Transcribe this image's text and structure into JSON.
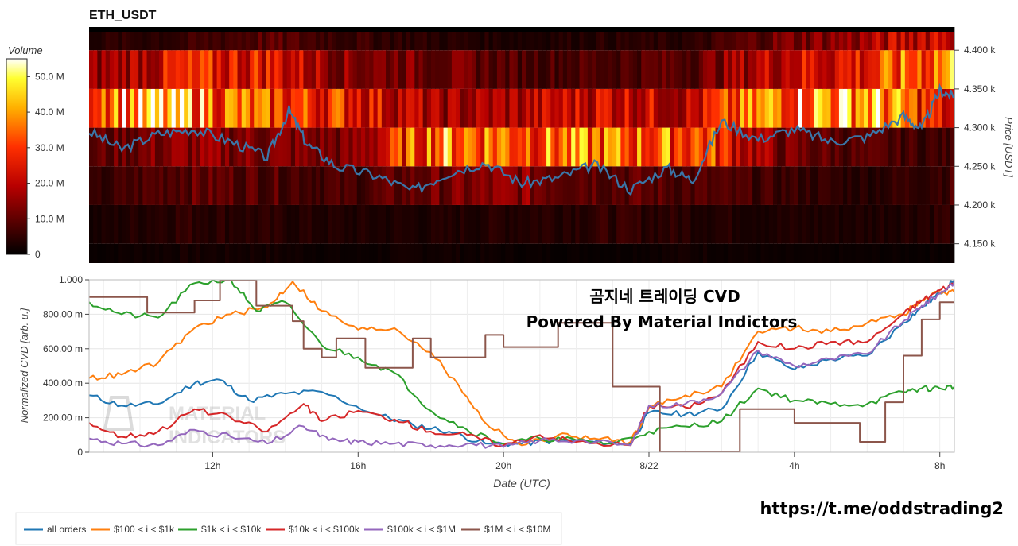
{
  "colors": {
    "all": "#1f77b4",
    "s100": "#ff7f0e",
    "s1k": "#2ca02c",
    "s10k": "#d62728",
    "s100k": "#9467bd",
    "s1m": "#8c564b",
    "price": "#3a76a8"
  },
  "icons": [
    "material-indicators-logo"
  ],
  "chart_data": [
    {
      "type": "heatmap",
      "title": "ETH_USDT",
      "colorbar": {
        "label": "Volume",
        "ticks": [
          "0",
          "10.0 M",
          "20.0 M",
          "30.0 M",
          "40.0 M",
          "50.0 M"
        ],
        "range": [
          0,
          55
        ],
        "colormap": "black-red-yellow-white"
      },
      "y_right": {
        "label": "Price [USDT]",
        "ticks": [
          "4.150 k",
          "4.200 k",
          "4.250 k",
          "4.300 k",
          "4.350 k",
          "4.400 k"
        ],
        "range": [
          4125,
          4430
        ]
      },
      "price_bands": [
        4125,
        4175,
        4225,
        4275,
        4325,
        4375,
        4425
      ],
      "band_levels": [
        [
          1,
          2,
          2,
          1,
          2,
          1,
          1,
          2,
          1,
          1,
          1
        ],
        [
          2,
          5,
          4,
          3,
          3,
          4,
          5,
          4,
          3,
          3,
          5
        ],
        [
          4,
          10,
          9,
          7,
          11,
          14,
          10,
          8,
          6,
          4,
          7
        ],
        [
          9,
          14,
          13,
          12,
          38,
          36,
          34,
          34,
          12,
          8,
          6
        ],
        [
          40,
          42,
          30,
          28,
          16,
          18,
          24,
          20,
          40,
          44,
          20
        ],
        [
          14,
          24,
          26,
          14,
          12,
          8,
          8,
          10,
          22,
          26,
          40
        ],
        [
          4,
          5,
          9,
          6,
          4,
          3,
          4,
          4,
          12,
          16,
          26
        ]
      ],
      "price_line": {
        "name": "Price",
        "x_hours": [
          8.6,
          9.5,
          10.5,
          11.5,
          12.5,
          13.5,
          14.1,
          14.6,
          15.4,
          16.5,
          17.5,
          18.5,
          19.5,
          20.5,
          21.5,
          22.5,
          23.5,
          24.5,
          25.2,
          26,
          27,
          28,
          29,
          30,
          31,
          31.5,
          32,
          32.4
        ],
        "values": [
          4295,
          4272,
          4292,
          4298,
          4282,
          4262,
          4322,
          4278,
          4250,
          4238,
          4218,
          4242,
          4255,
          4228,
          4235,
          4252,
          4220,
          4248,
          4232,
          4308,
          4285,
          4298,
          4282,
          4288,
          4315,
          4298,
          4348,
          4340
        ]
      }
    },
    {
      "type": "line",
      "xlabel": "Date (UTC)",
      "ylabel": "Normalized CVD [arb. u.]",
      "x_ticks": [
        "12h",
        "16h",
        "20h",
        "8/22",
        "4h",
        "8h"
      ],
      "x_tick_hours": [
        12,
        16,
        20,
        24,
        28,
        32
      ],
      "x_range_hours": [
        8.6,
        32.4
      ],
      "y_ticks": [
        "0",
        "200.00 m",
        "400.00 m",
        "600.00 m",
        "800.00 m",
        "1.000"
      ],
      "ylim": [
        0,
        1
      ],
      "annotations": [
        "곰지네 트레이딩 CVD",
        "Powered By Material Indictors"
      ],
      "watermark": [
        "MATERIAL",
        "INDICATORS"
      ],
      "legend": "bottom",
      "series": [
        {
          "name": "all orders",
          "key": "all",
          "x": [
            8.6,
            9.5,
            10.5,
            11.5,
            12.2,
            13,
            14,
            15,
            16.5,
            17.5,
            18.5,
            19.5,
            20.5,
            21.5,
            22.5,
            23.5,
            24,
            25,
            26,
            27,
            28,
            29,
            30,
            31,
            31.5,
            32,
            32.4
          ],
          "y": [
            0.33,
            0.27,
            0.28,
            0.4,
            0.42,
            0.3,
            0.34,
            0.35,
            0.22,
            0.16,
            0.12,
            0.05,
            0.05,
            0.07,
            0.06,
            0.05,
            0.23,
            0.22,
            0.25,
            0.58,
            0.48,
            0.54,
            0.56,
            0.75,
            0.84,
            0.92,
            1.0
          ]
        },
        {
          "name": "$100 < i < $1k",
          "key": "s100",
          "x": [
            8.6,
            9.5,
            10.5,
            11.5,
            12.5,
            13.5,
            14.2,
            15,
            16,
            17,
            18,
            19,
            19.5,
            20.5,
            21.5,
            22.5,
            23.5,
            24,
            25,
            26,
            27,
            28,
            29,
            30,
            31,
            31.5,
            32,
            32.4
          ],
          "y": [
            0.43,
            0.45,
            0.52,
            0.72,
            0.8,
            0.84,
            0.99,
            0.82,
            0.71,
            0.72,
            0.58,
            0.32,
            0.17,
            0.04,
            0.1,
            0.08,
            0.06,
            0.26,
            0.33,
            0.38,
            0.7,
            0.72,
            0.7,
            0.75,
            0.8,
            0.88,
            0.93,
            0.93
          ]
        },
        {
          "name": "$1k < i < $10k",
          "key": "s1k",
          "x": [
            8.6,
            9.5,
            10.5,
            11.5,
            12.5,
            13.2,
            14,
            15,
            16,
            17,
            18,
            19,
            20,
            21,
            22,
            23,
            24,
            25,
            26,
            27,
            28,
            29,
            30,
            31,
            31.5,
            32,
            32.4
          ],
          "y": [
            0.87,
            0.8,
            0.78,
            0.98,
            1.0,
            0.82,
            0.87,
            0.62,
            0.55,
            0.46,
            0.24,
            0.13,
            0.05,
            0.08,
            0.07,
            0.05,
            0.12,
            0.15,
            0.18,
            0.37,
            0.3,
            0.28,
            0.28,
            0.35,
            0.37,
            0.37,
            0.38
          ]
        },
        {
          "name": "$10k < i < $100k",
          "key": "s10k",
          "x": [
            8.6,
            9.5,
            10.5,
            11.5,
            12.5,
            13.5,
            14.5,
            15,
            16,
            17,
            18,
            19,
            20,
            21,
            22,
            23.5,
            24,
            25,
            26,
            27,
            28,
            29,
            30,
            31,
            31.5,
            32,
            32.4
          ],
          "y": [
            0.17,
            0.09,
            0.12,
            0.25,
            0.2,
            0.12,
            0.28,
            0.18,
            0.24,
            0.19,
            0.12,
            0.1,
            0.04,
            0.1,
            0.06,
            0.04,
            0.27,
            0.26,
            0.34,
            0.64,
            0.6,
            0.64,
            0.64,
            0.8,
            0.88,
            0.94,
            0.98
          ]
        },
        {
          "name": "$100k < i < $1M",
          "key": "s100k",
          "x": [
            8.6,
            9.5,
            10.5,
            11.5,
            12.5,
            13.5,
            14.5,
            15.2,
            16,
            17,
            18,
            19,
            20,
            21,
            22,
            23.5,
            24,
            25,
            26,
            27,
            28,
            29,
            30,
            31,
            31.5,
            32,
            32.4
          ],
          "y": [
            0.08,
            0.05,
            0.04,
            0.13,
            0.09,
            0.05,
            0.15,
            0.07,
            0.06,
            0.05,
            0.04,
            0.05,
            0.03,
            0.07,
            0.07,
            0.04,
            0.27,
            0.28,
            0.34,
            0.59,
            0.5,
            0.54,
            0.57,
            0.76,
            0.85,
            0.92,
            0.99
          ]
        },
        {
          "name": "$1M < i < $10M",
          "key": "s1m",
          "x": [
            8.6,
            10.0,
            10.2,
            11.5,
            12.0,
            12.2,
            13.0,
            13.2,
            14.2,
            14.5,
            15,
            15.4,
            16.2,
            17.5,
            18.0,
            19.5,
            20.0,
            21.0,
            21.5,
            22.5,
            23.0,
            23.4,
            24.0,
            24.3,
            26.3,
            26.5,
            27.5,
            28.0,
            29.5,
            29.8,
            30.5,
            31.0,
            31.5,
            32.0,
            32.4
          ],
          "y": [
            0.9,
            0.9,
            0.81,
            0.88,
            0.88,
            1.0,
            1.0,
            0.85,
            0.76,
            0.6,
            0.55,
            0.66,
            0.49,
            0.66,
            0.55,
            0.68,
            0.61,
            0.61,
            0.75,
            0.75,
            0.38,
            0.38,
            0.38,
            0.0,
            0.0,
            0.25,
            0.25,
            0.17,
            0.17,
            0.06,
            0.29,
            0.56,
            0.77,
            0.87,
            0.87
          ]
        }
      ]
    }
  ],
  "footer": {
    "link": "https://t.me/oddstrading2"
  }
}
